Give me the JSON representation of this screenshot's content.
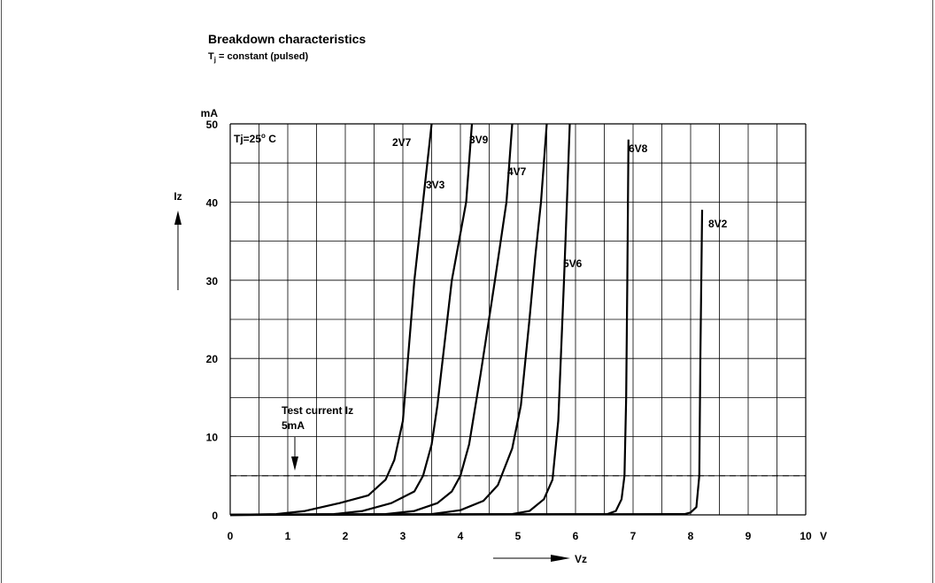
{
  "title": "Breakdown characteristics",
  "subtitle": {
    "prefix": "T",
    "sub": "j",
    "rest": " = constant (pulsed)"
  },
  "chart_data": {
    "type": "line",
    "xlabel": "Vz",
    "ylabel": "Iz",
    "x_unit": "V",
    "y_unit": "mA",
    "xlim": [
      0,
      10
    ],
    "ylim": [
      0,
      50
    ],
    "x_ticks": [
      "0",
      "1",
      "2",
      "3",
      "4",
      "5",
      "6",
      "7",
      "8",
      "9",
      "10"
    ],
    "y_ticks": [
      "0",
      "10",
      "20",
      "30",
      "40",
      "50"
    ],
    "grid": true,
    "condition_label": "Tj=25",
    "condition_suffix": "C",
    "condition_sup": "o",
    "test_current": {
      "label_line1": "Test current Iz",
      "label_line2": "5mA",
      "value": 5
    },
    "series": [
      {
        "name": "2V7",
        "points": [
          [
            0,
            0
          ],
          [
            0.8,
            0.1
          ],
          [
            1.3,
            0.5
          ],
          [
            1.9,
            1.5
          ],
          [
            2.4,
            2.5
          ],
          [
            2.7,
            4.5
          ],
          [
            2.85,
            7
          ],
          [
            3.0,
            12
          ],
          [
            3.2,
            30
          ],
          [
            3.5,
            50
          ]
        ]
      },
      {
        "name": "3V3",
        "points": [
          [
            0,
            0
          ],
          [
            1.8,
            0.1
          ],
          [
            2.3,
            0.5
          ],
          [
            2.8,
            1.5
          ],
          [
            3.2,
            3
          ],
          [
            3.35,
            5
          ],
          [
            3.5,
            9
          ],
          [
            3.6,
            14
          ],
          [
            3.85,
            30
          ],
          [
            4.1,
            40
          ],
          [
            4.2,
            50
          ]
        ]
      },
      {
        "name": "3V9",
        "points": [
          [
            0,
            0
          ],
          [
            2.7,
            0.1
          ],
          [
            3.2,
            0.5
          ],
          [
            3.6,
            1.5
          ],
          [
            3.85,
            3
          ],
          [
            4.0,
            5
          ],
          [
            4.15,
            9
          ],
          [
            4.35,
            18
          ],
          [
            4.6,
            30
          ],
          [
            4.8,
            40
          ],
          [
            4.9,
            50
          ]
        ]
      },
      {
        "name": "4V7",
        "points": [
          [
            0,
            0
          ],
          [
            3.5,
            0.1
          ],
          [
            4.0,
            0.6
          ],
          [
            4.4,
            1.8
          ],
          [
            4.65,
            3.8
          ],
          [
            4.9,
            8.5
          ],
          [
            5.05,
            14
          ],
          [
            5.2,
            25
          ],
          [
            5.3,
            33
          ],
          [
            5.4,
            40
          ],
          [
            5.5,
            50
          ]
        ]
      },
      {
        "name": "5V6",
        "points": [
          [
            0,
            0
          ],
          [
            4.9,
            0.1
          ],
          [
            5.2,
            0.5
          ],
          [
            5.45,
            2
          ],
          [
            5.6,
            4.5
          ],
          [
            5.7,
            12
          ],
          [
            5.8,
            30
          ],
          [
            5.85,
            40
          ],
          [
            5.9,
            50
          ]
        ]
      },
      {
        "name": "6V8",
        "points": [
          [
            0,
            0
          ],
          [
            6.55,
            0.1
          ],
          [
            6.7,
            0.5
          ],
          [
            6.8,
            2
          ],
          [
            6.85,
            5
          ],
          [
            6.88,
            15
          ],
          [
            6.9,
            30
          ],
          [
            6.92,
            48
          ]
        ]
      },
      {
        "name": "8V2",
        "points": [
          [
            0,
            0
          ],
          [
            7.9,
            0.1
          ],
          [
            8.0,
            0.3
          ],
          [
            8.1,
            1
          ],
          [
            8.15,
            5
          ],
          [
            8.17,
            20
          ],
          [
            8.2,
            39
          ]
        ]
      }
    ]
  }
}
